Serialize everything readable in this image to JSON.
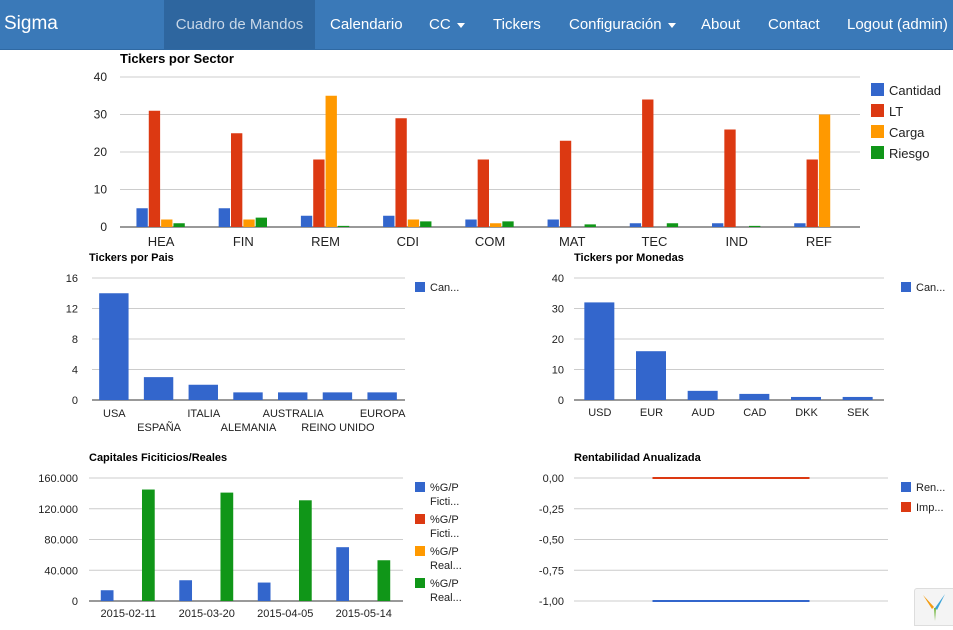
{
  "brand": "Sigma",
  "nav": [
    {
      "label": "Cuadro de Mandos",
      "active": true
    },
    {
      "label": "Calendario"
    },
    {
      "label": "CC"
    },
    {
      "label": "Tickers"
    },
    {
      "label": "Configuración"
    },
    {
      "label": "About"
    },
    {
      "label": "Contact"
    },
    {
      "label": "Logout (admin)"
    }
  ],
  "colors": {
    "blue": "#3366cc",
    "red": "#dc3912",
    "orange": "#ff9900",
    "green": "#109618"
  },
  "chart_data": [
    {
      "type": "bar",
      "title": "Tickers por Sector",
      "categories": [
        "HEA",
        "FIN",
        "REM",
        "CDI",
        "COM",
        "MAT",
        "TEC",
        "IND",
        "REF"
      ],
      "ylim": [
        0,
        40
      ],
      "yticks": [
        0,
        10,
        20,
        30,
        40
      ],
      "legend": "right",
      "series": [
        {
          "name": "Cantidad",
          "values": [
            5,
            5,
            3,
            3,
            2,
            2,
            1,
            1,
            1
          ]
        },
        {
          "name": "LT",
          "values": [
            31,
            25,
            18,
            29,
            18,
            23,
            34,
            26,
            18
          ]
        },
        {
          "name": "Carga",
          "values": [
            2,
            2,
            35,
            2,
            1,
            0,
            0,
            0,
            30
          ]
        },
        {
          "name": "Riesgo",
          "values": [
            1,
            2.5,
            0.3,
            1.5,
            1.5,
            0.7,
            1,
            0.3,
            0
          ]
        }
      ]
    },
    {
      "type": "bar",
      "title": "Tickers por Pais",
      "categories": [
        "USA",
        "ESPAÑA",
        "ITALIA",
        "ALEMANIA",
        "AUSTRALIA",
        "REINO UNIDO",
        "EUROPA"
      ],
      "ylim": [
        0,
        16
      ],
      "yticks": [
        0,
        4,
        8,
        12,
        16
      ],
      "legend": "right",
      "series": [
        {
          "name": "Can...",
          "values": [
            14,
            3,
            2,
            1,
            1,
            1,
            1
          ]
        }
      ]
    },
    {
      "type": "bar",
      "title": "Tickers por Monedas",
      "categories": [
        "USD",
        "EUR",
        "AUD",
        "CAD",
        "DKK",
        "SEK"
      ],
      "ylim": [
        0,
        40
      ],
      "yticks": [
        0,
        10,
        20,
        30,
        40
      ],
      "legend": "right",
      "series": [
        {
          "name": "Can...",
          "values": [
            32,
            16,
            3,
            2,
            1,
            1
          ]
        }
      ]
    },
    {
      "type": "bar",
      "title": "Capitales Ficiticios/Reales",
      "categories": [
        "2015-02-11",
        "2015-03-20",
        "2015-04-05",
        "2015-05-14"
      ],
      "ylim": [
        0,
        160000
      ],
      "yticks": [
        0,
        40000,
        80000,
        120000,
        160000
      ],
      "ytick_labels": [
        "0",
        "40.000",
        "80.000",
        "120.000",
        "160.000"
      ],
      "legend": "right",
      "series": [
        {
          "name": "%G/P Fict...",
          "line1": "%G/P",
          "line2": "Ficti...",
          "values": [
            14000,
            27000,
            24000,
            70000
          ]
        },
        {
          "name": "%G/P Fict...",
          "line1": "%G/P",
          "line2": "Ficti...",
          "values": [
            0,
            0,
            0,
            0
          ]
        },
        {
          "name": "%G/P Real...",
          "line1": "%G/P",
          "line2": "Real...",
          "values": [
            0,
            0,
            0,
            0
          ]
        },
        {
          "name": "%G/P Real...",
          "line1": "%G/P",
          "line2": "Real...",
          "values": [
            145000,
            141000,
            131000,
            53000
          ]
        }
      ]
    },
    {
      "type": "line",
      "title": "Rentabilidad Anualizada",
      "ylim": [
        -1,
        0
      ],
      "yticks": [
        0,
        -0.25,
        -0.5,
        -0.75,
        -1
      ],
      "ytick_labels": [
        "0,00",
        "-0,25",
        "-0,50",
        "-0,75",
        "-1,00"
      ],
      "legend": "right",
      "x_range": [
        0.25,
        0.75
      ],
      "series": [
        {
          "name": "Ren...",
          "values": [
            -1,
            -1
          ]
        },
        {
          "name": "Imp...",
          "values": [
            0,
            0
          ]
        }
      ]
    }
  ]
}
